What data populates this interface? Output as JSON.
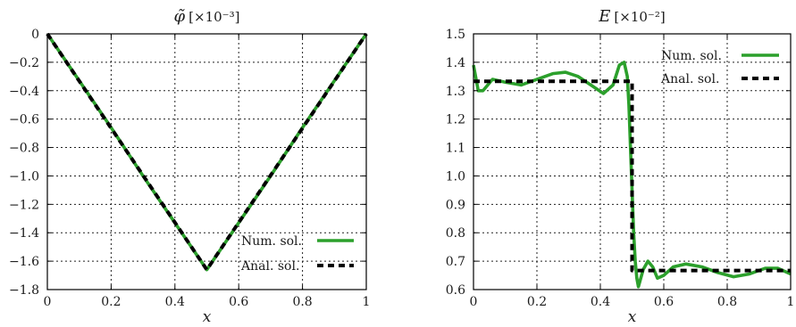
{
  "colors": {
    "numerical": "#2ca02c",
    "analytical": "#000000",
    "grid": "#222222",
    "frame": "#000000"
  },
  "chart_data": [
    {
      "type": "line",
      "title": "φ̃",
      "title_scale": "[×10⁻³]",
      "xlabel": "x",
      "ylabel": "",
      "xlim": [
        0,
        1
      ],
      "ylim": [
        -1.8,
        0
      ],
      "grid": true,
      "legend_position": "bottom-right",
      "xticks": [
        0,
        0.2,
        0.4,
        0.6,
        0.8,
        1
      ],
      "xtick_labels": [
        "0",
        "0.2",
        "0.4",
        "0.6",
        "0.8",
        "1"
      ],
      "yticks": [
        0,
        -0.2,
        -0.4,
        -0.6,
        -0.8,
        -1.0,
        -1.2,
        -1.4,
        -1.6,
        -1.8
      ],
      "ytick_labels": [
        "0",
        "−0.2",
        "−0.4",
        "−0.6",
        "−0.8",
        "−1.0",
        "−1.2",
        "−1.4",
        "−1.6",
        "−1.8"
      ],
      "series": [
        {
          "name": "Num. sol.",
          "style": "solid",
          "x": [
            0,
            0.1,
            0.2,
            0.3,
            0.4,
            0.5,
            0.6,
            0.7,
            0.8,
            0.9,
            1.0
          ],
          "y": [
            0,
            -0.33,
            -0.66,
            -1.0,
            -1.33,
            -1.66,
            -1.33,
            -1.0,
            -0.66,
            -0.33,
            0
          ]
        },
        {
          "name": "Anal. sol.",
          "style": "dashed",
          "x": [
            0,
            0.5,
            1.0
          ],
          "y": [
            0,
            -1.66,
            0
          ]
        }
      ]
    },
    {
      "type": "line",
      "title": "E",
      "title_scale": "[×10⁻²]",
      "xlabel": "x",
      "ylabel": "",
      "xlim": [
        0,
        1
      ],
      "ylim": [
        0.6,
        1.5
      ],
      "grid": true,
      "legend_position": "top-right",
      "xticks": [
        0,
        0.2,
        0.4,
        0.6,
        0.8,
        1
      ],
      "xtick_labels": [
        "0",
        "0.2",
        "0.4",
        "0.6",
        "0.8",
        "1"
      ],
      "yticks": [
        0.6,
        0.7,
        0.8,
        0.9,
        1.0,
        1.1,
        1.2,
        1.3,
        1.4,
        1.5
      ],
      "ytick_labels": [
        "0.6",
        "0.7",
        "0.8",
        "0.9",
        "1.0",
        "1.1",
        "1.2",
        "1.3",
        "1.4",
        "1.5"
      ],
      "series": [
        {
          "name": "Num. sol.",
          "style": "solid",
          "x": [
            0,
            0.015,
            0.03,
            0.06,
            0.1,
            0.15,
            0.2,
            0.25,
            0.29,
            0.33,
            0.37,
            0.41,
            0.44,
            0.46,
            0.475,
            0.485,
            0.49,
            0.495,
            0.5,
            0.505,
            0.51,
            0.515,
            0.52,
            0.525,
            0.535,
            0.55,
            0.565,
            0.58,
            0.6,
            0.63,
            0.67,
            0.72,
            0.77,
            0.82,
            0.87,
            0.92,
            0.96,
            1.0
          ],
          "y": [
            1.39,
            1.3,
            1.3,
            1.34,
            1.33,
            1.32,
            1.34,
            1.36,
            1.365,
            1.35,
            1.32,
            1.29,
            1.32,
            1.39,
            1.4,
            1.35,
            1.25,
            1.1,
            0.95,
            0.8,
            0.7,
            0.64,
            0.61,
            0.63,
            0.67,
            0.7,
            0.68,
            0.64,
            0.65,
            0.68,
            0.69,
            0.68,
            0.66,
            0.645,
            0.655,
            0.675,
            0.675,
            0.655
          ]
        },
        {
          "name": "Anal. sol.",
          "style": "dashed",
          "x": [
            0,
            0.5,
            0.5,
            1.0
          ],
          "y": [
            1.333,
            1.333,
            0.667,
            0.667
          ]
        }
      ]
    }
  ]
}
